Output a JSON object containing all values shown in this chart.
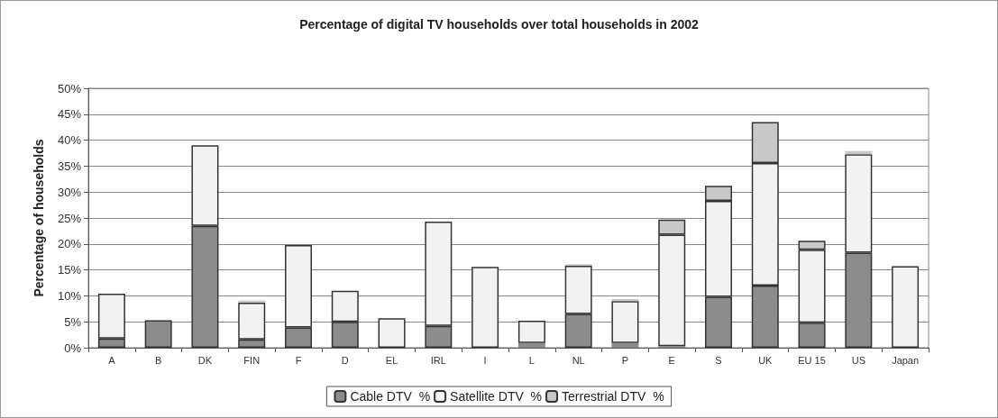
{
  "chart_data": {
    "type": "bar",
    "title": "Percentage of digital TV households over total households in 2002",
    "ylabel": "Percentage of households",
    "categories": [
      "A",
      "B",
      "DK",
      "FIN",
      "F",
      "D",
      "EL",
      "IRL",
      "I",
      "L",
      "NL",
      "P",
      "E",
      "S",
      "UK",
      "EU 15",
      "US",
      "Japan"
    ],
    "stacked": true,
    "series": [
      {
        "name": "Cable DTV  %",
        "color": "#8c8c8c",
        "values": [
          1.8,
          5.3,
          23.5,
          1.6,
          3.9,
          5.0,
          0,
          4.2,
          0,
          0.9,
          6.5,
          0.9,
          0.3,
          9.8,
          12.0,
          4.8,
          18.3,
          0
        ]
      },
      {
        "name": "Satellite DTV  %",
        "color": "#f2f2f2",
        "values": [
          8.6,
          0,
          15.5,
          7.1,
          15.9,
          6.0,
          5.7,
          20.1,
          15.6,
          4.3,
          9.3,
          8.1,
          21.5,
          18.5,
          23.6,
          14.1,
          19.0,
          15.7
        ]
      },
      {
        "name": "Terrestrial DTV  %",
        "color": "#c8c8c8",
        "values": [
          0,
          0,
          0,
          0.4,
          0,
          0,
          0,
          0,
          0,
          0,
          0.3,
          0.4,
          2.9,
          2.9,
          7.9,
          1.7,
          0.6,
          0
        ]
      }
    ],
    "ylim": [
      0,
      50
    ],
    "yticks": [
      {
        "value": 0,
        "label": "0%"
      },
      {
        "value": 5,
        "label": "5%"
      },
      {
        "value": 10,
        "label": "10%"
      },
      {
        "value": 15,
        "label": "15%"
      },
      {
        "value": 20,
        "label": "20%"
      },
      {
        "value": 25,
        "label": "25%"
      },
      {
        "value": 30,
        "label": "30%"
      },
      {
        "value": 35,
        "label": "35%"
      },
      {
        "value": 40,
        "label": "40%"
      },
      {
        "value": 45,
        "label": "45%"
      },
      {
        "value": 50,
        "label": "50%"
      }
    ],
    "grid": "y",
    "legend": "bottom"
  }
}
